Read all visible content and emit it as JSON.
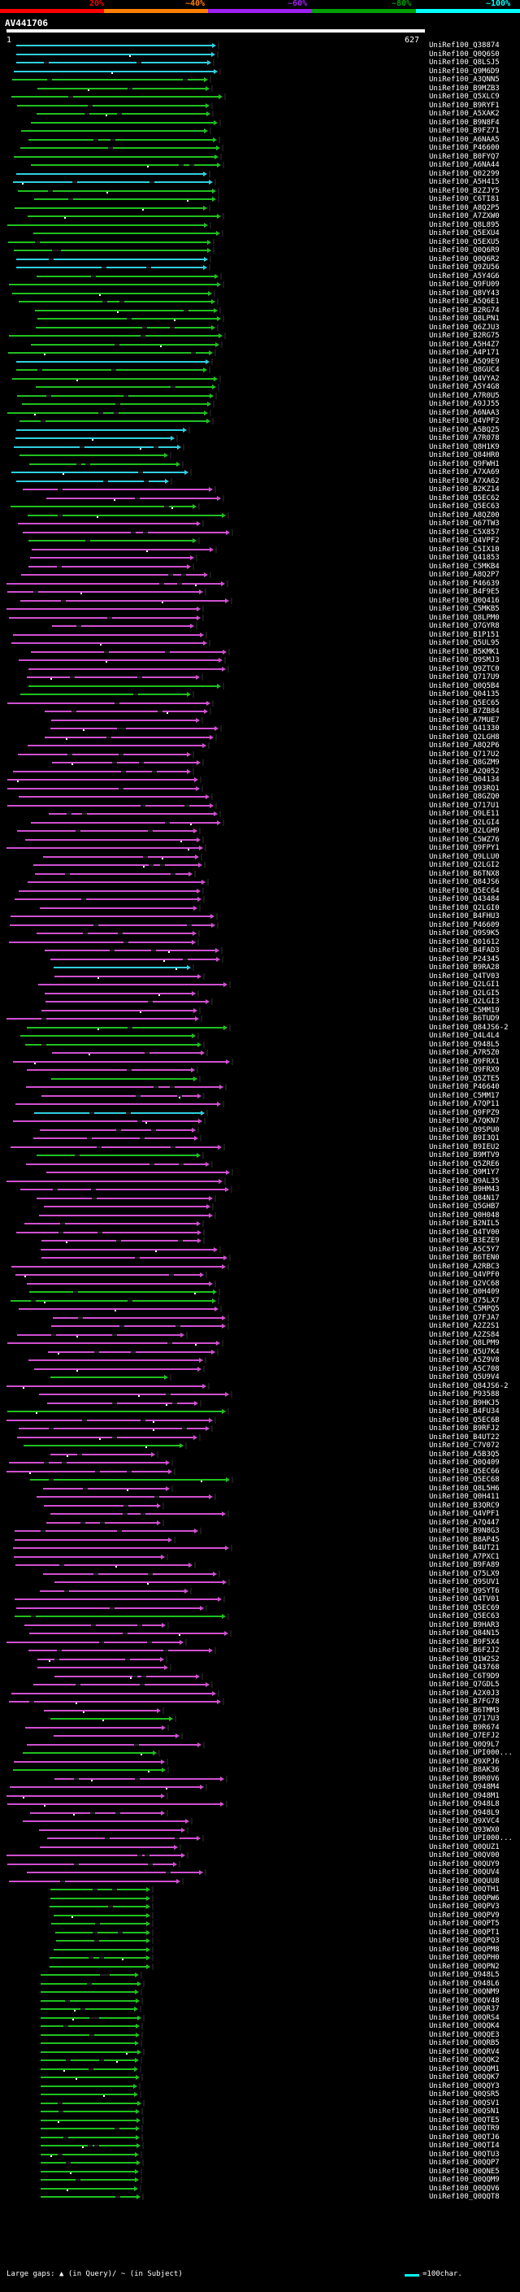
{
  "header": {
    "scale_ticks": [
      "20%",
      "~40%",
      "~60%",
      "~80%",
      "~100%"
    ],
    "scale_colors": [
      "#ff0000",
      "#ff8000",
      "#a020f0",
      "#00a000",
      "#00ffff"
    ],
    "query_id": "AV441706",
    "query_start": "1",
    "query_end": "627"
  },
  "colors": {
    "cyan": "#30d0e0",
    "green": "#20c020",
    "magenta": "#d050d0",
    "white": "#ffffff",
    "gap": "#444444"
  },
  "hits": [
    "UniRef100_Q38874",
    "UniRef100_Q0Q6S0",
    "UniRef100_Q8LSJ5",
    "UniRef100_Q9M6D9",
    "UniRef100_A3QNN5",
    "UniRef100_B9MZB3",
    "UniRef100_Q5XLC9",
    "UniRef100_B9RYF1",
    "UniRef100_A5XAK2",
    "UniRef100_B9N8F4",
    "UniRef100_B9FZ71",
    "UniRef100_A6NAA5",
    "UniRef100_P46600",
    "UniRef100_B0FYQ7",
    "UniRef100_A6NA44",
    "UniRef100_Q02299",
    "UniRef100_A5H415",
    "UniRef100_B2ZJY5",
    "UniRef100_C6TI81",
    "UniRef100_A8Q2P5",
    "UniRef100_A7ZXW0",
    "UniRef100_Q8L895",
    "UniRef100_Q5EXU4",
    "UniRef100_Q5EXU5",
    "UniRef100_Q0Q6R9",
    "UniRef100_Q0Q6R2",
    "UniRef100_Q9ZU56",
    "UniRef100_A5Y4G6",
    "UniRef100_Q9FU09",
    "UniRef100_Q8VY43",
    "UniRef100_A5Q6E1",
    "UniRef100_B2RG74",
    "UniRef100_Q8LPN1",
    "UniRef100_Q6ZJU3",
    "UniRef100_B2RG75",
    "UniRef100_A5H4Z7",
    "UniRef100_A4P171",
    "UniRef100_A5Q9E9",
    "UniRef100_Q8GUC4",
    "UniRef100_Q4VYA2",
    "UniRef100_A5Y4G8",
    "UniRef100_A7R0U5",
    "UniRef100_A9JJ55",
    "UniRef100_A6NAA3",
    "UniRef100_Q4VPF2",
    "UniRef100_A5BQ25",
    "UniRef100_A7R078",
    "UniRef100_Q8H1K9",
    "UniRef100_Q84HR0",
    "UniRef100_Q9FWH1",
    "UniRef100_A7XA69",
    "UniRef100_A7XA62",
    "UniRef100_B2KZ14",
    "UniRef100_Q5EC62",
    "UniRef100_Q5EC63",
    "UniRef100_A8QZ00",
    "UniRef100_Q67TW3",
    "UniRef100_C5X857",
    "UniRef100_Q4VPF2",
    "UniRef100_C5IX10",
    "UniRef100_Q41853",
    "UniRef100_C5MKB4",
    "UniRef100_A8Q2P7",
    "UniRef100_P46639",
    "UniRef100_B4F9E5",
    "UniRef100_Q0Q416",
    "UniRef100_C5MKB5",
    "UniRef100_Q8LPM0",
    "UniRef100_Q7GYR8",
    "UniRef100_B1P151",
    "UniRef100_Q5UL95",
    "UniRef100_B5KMK1",
    "UniRef100_Q9SMJ3",
    "UniRef100_Q9ZTC0",
    "UniRef100_Q717U9",
    "UniRef100_Q0Q5B4",
    "UniRef100_Q04135",
    "UniRef100_Q5EC65",
    "UniRef100_B7ZB84",
    "UniRef100_A7MUE7",
    "UniRef100_Q41330",
    "UniRef100_Q2LGH8",
    "UniRef100_A8Q2P6",
    "UniRef100_Q717U2",
    "UniRef100_Q8GZM9",
    "UniRef100_A2Q052",
    "UniRef100_Q04134",
    "UniRef100_Q93RQ1",
    "UniRef100_Q8GZQ0",
    "UniRef100_Q717U1",
    "UniRef100_Q9LE11",
    "UniRef100_Q2LGI4",
    "UniRef100_Q2LGH9",
    "UniRef100_C5WZ76",
    "UniRef100_Q9FPY1",
    "UniRef100_Q9LLU0",
    "UniRef100_Q2LGI2",
    "UniRef100_B6TNX8",
    "UniRef100_Q84JS6",
    "UniRef100_Q5EC64",
    "UniRef100_Q43484",
    "UniRef100_Q2LGI0",
    "UniRef100_B4FHU3",
    "UniRef100_P46609",
    "UniRef100_Q9S9K5",
    "UniRef100_Q01612",
    "UniRef100_B4FAD3",
    "UniRef100_P24345",
    "UniRef100_B9RA28",
    "UniRef100_Q4TV03",
    "UniRef100_Q2LGI1",
    "UniRef100_Q2LGI5",
    "UniRef100_Q2LGI3",
    "UniRef100_C5MM19",
    "UniRef100_B6TUD9",
    "UniRef100_Q84JS6-2",
    "UniRef100_Q4L4L4",
    "UniRef100_Q948L5",
    "UniRef100_A7R5Z0",
    "UniRef100_Q9FRX1",
    "UniRef100_Q9FRX9",
    "UniRef100_Q5ZTE5",
    "UniRef100_P46640",
    "UniRef100_C5MM17",
    "UniRef100_A7QP11",
    "UniRef100_Q9FPZ9",
    "UniRef100_A7QKN7",
    "UniRef100_Q9SPU0",
    "UniRef100_B9I3Q1",
    "UniRef100_B9IEU2",
    "UniRef100_B9MTV9",
    "UniRef100_Q5ZRE6",
    "UniRef100_Q9M1Y7",
    "UniRef100_Q9AL35",
    "UniRef100_B9HM43",
    "UniRef100_Q84N17",
    "UniRef100_Q5GHB7",
    "UniRef100_Q0H048",
    "UniRef100_B2NIL5",
    "UniRef100_Q4TV00",
    "UniRef100_B3EZE9",
    "UniRef100_A5C5Y7",
    "UniRef100_B6TEN0",
    "UniRef100_A2RBC3",
    "UniRef100_Q4VPF0",
    "UniRef100_Q2VC68",
    "UniRef100_Q0H409",
    "UniRef100_Q75LX7",
    "UniRef100_C5MPQ5",
    "UniRef100_Q7FJA7",
    "UniRef100_A2Z2S1",
    "UniRef100_A2ZS84",
    "UniRef100_Q8LPM9",
    "UniRef100_Q5U7K4",
    "UniRef100_A5Z9V8",
    "UniRef100_A5C708",
    "UniRef100_Q5U9V4",
    "UniRef100_Q84JS6-2",
    "UniRef100_P93588",
    "UniRef100_B9HKJ5",
    "UniRef100_B4FU34",
    "UniRef100_Q5EC6B",
    "UniRef100_B9RFJ2",
    "UniRef100_B4UT22",
    "UniRef100_C7V072",
    "UniRef100_A5B3Q5",
    "UniRef100_Q0Q409",
    "UniRef100_Q5EC66",
    "UniRef100_Q5EC68",
    "UniRef100_Q8L5H6",
    "UniRef100_Q0H411",
    "UniRef100_B3QRC9",
    "UniRef100_Q4VPF1",
    "UniRef100_A7Q447",
    "UniRef100_B9N8G3",
    "UniRef100_B8AP45",
    "UniRef100_B4UT21",
    "UniRef100_A7PXC1",
    "UniRef100_B9FA89",
    "UniRef100_Q75LX9",
    "UniRef100_Q9SUV1",
    "UniRef100_Q9SYT6",
    "UniRef100_Q4TV01",
    "UniRef100_Q5EC69",
    "UniRef100_Q5EC63",
    "UniRef100_B9HAR3",
    "UniRef100_Q84N15",
    "UniRef100_B9F5X4",
    "UniRef100_B6F2J2",
    "UniRef100_Q1W2S2",
    "UniRef100_Q43768",
    "UniRef100_C6T9D9",
    "UniRef100_Q7GDL5",
    "UniRef100_A2X0J3",
    "UniRef100_B7FG78",
    "UniRef100_B6TMM3",
    "UniRef100_Q717U3",
    "UniRef100_B9R674",
    "UniRef100_Q7EFJ2",
    "UniRef100_Q0Q9L7",
    "UniRef100_UPI000...",
    "UniRef100_Q9XPJ6",
    "UniRef100_B8AK36",
    "UniRef100_B9R0V6",
    "UniRef100_Q948M4",
    "UniRef100_Q948M1",
    "UniRef100_Q948L8",
    "UniRef100_Q948L9",
    "UniRef100_Q9XVC4",
    "UniRef100_Q93WX0",
    "UniRef100_UPI000...",
    "UniRef100_Q0QUZ1",
    "UniRef100_Q0QV00",
    "UniRef100_Q0QUY9",
    "UniRef100_Q0QUV4",
    "UniRef100_Q0QUU8",
    "UniRef100_Q0QTH1",
    "UniRef100_Q0QPW6",
    "UniRef100_Q0QPV3",
    "UniRef100_Q0QPV9",
    "UniRef100_Q0QPT5",
    "UniRef100_Q0QPT1",
    "UniRef100_Q0QPQ3",
    "UniRef100_Q0QPM8",
    "UniRef100_Q0QPH0",
    "UniRef100_Q0QPN2",
    "UniRef100_Q948L5",
    "UniRef100_Q948L6",
    "UniRef100_Q0QNM9",
    "UniRef100_Q0QV48",
    "UniRef100_Q0QR37",
    "UniRef100_Q0QRS4",
    "UniRef100_Q0QQK4",
    "UniRef100_Q0QQE3",
    "UniRef100_Q0QRB5",
    "UniRef100_Q0QRV4",
    "UniRef100_Q0QQK2",
    "UniRef100_Q0QQM1",
    "UniRef100_Q0QQK7",
    "UniRef100_Q0QQY3",
    "UniRef100_Q0QSR5",
    "UniRef100_Q0QSV1",
    "UniRef100_Q0QSN1",
    "UniRef100_Q0QTE5",
    "UniRef100_Q0QTR9",
    "UniRef100_Q0QTJ6",
    "UniRef100_Q0QTI4",
    "UniRef100_Q0QTU3",
    "UniRef100_Q0QQP7",
    "UniRef100_Q0QNE5",
    "UniRef100_Q0QQM9",
    "UniRef100_Q0QQV6",
    "UniRef100_Q0QQT8"
  ],
  "legend": {
    "gaps_text": "Large gaps: ▲ (in Query)/ ~ (in Subject)",
    "scale_text": "=100char."
  }
}
